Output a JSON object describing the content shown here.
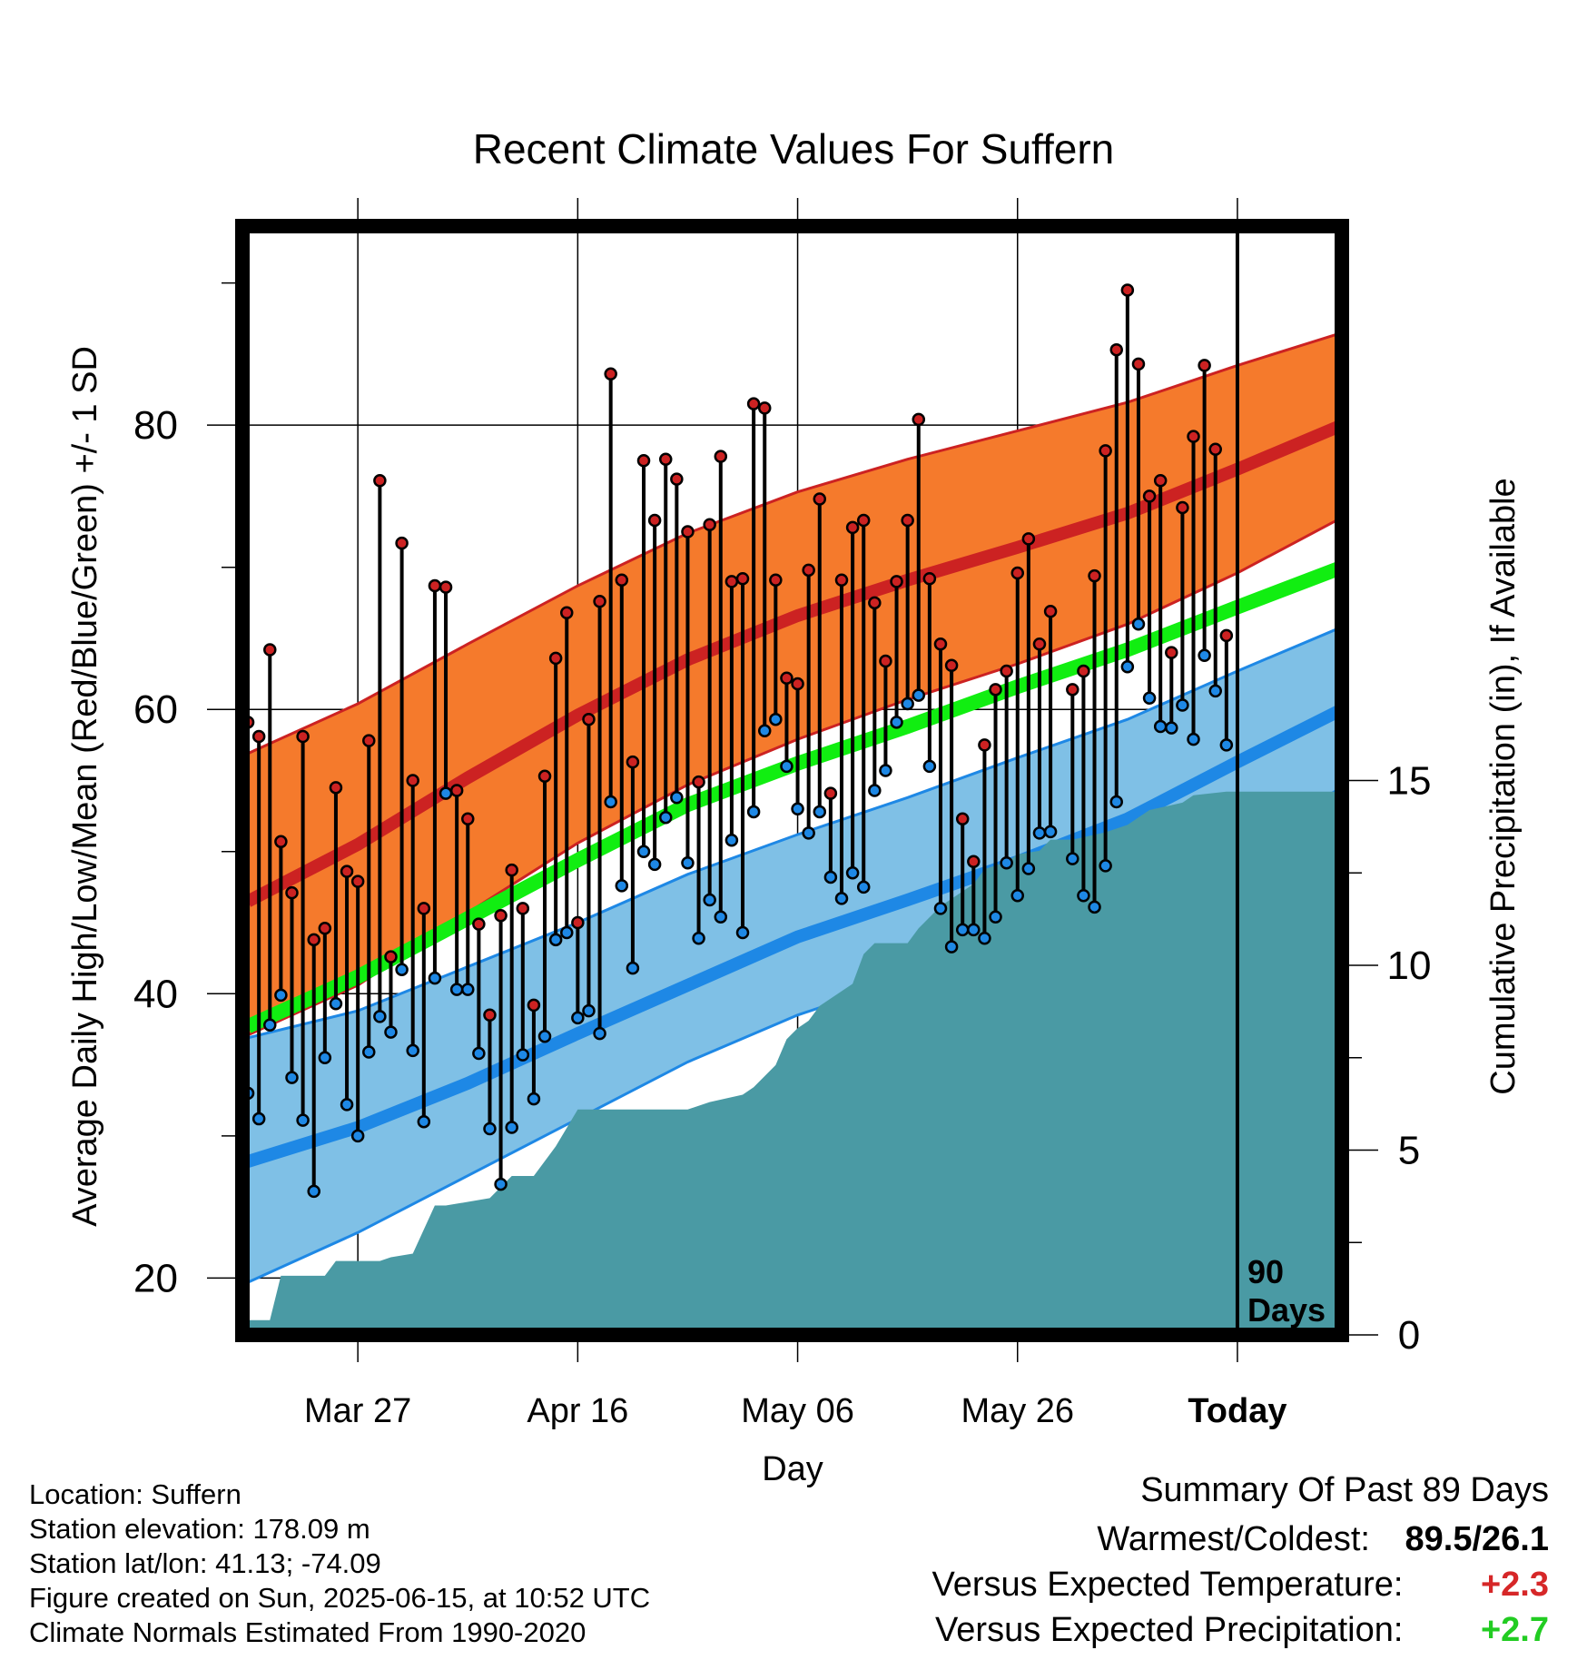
{
  "chart_data": {
    "type": "line",
    "title": "Recent Climate Values For Suffern",
    "xlabel": "Day",
    "ylabel": "Average Daily High/Low/Mean (Red/Blue/Green) +/- 1 SD",
    "y2label": "Cumulative Precipitation (in), If Available",
    "x_tick_labels": [
      "Mar 27",
      "Apr 16",
      "May 06",
      "May 26",
      "Today"
    ],
    "x_tick_days": [
      10,
      30,
      50,
      70,
      90
    ],
    "x_range": [
      -0.5,
      99.5
    ],
    "today_day": 90,
    "today_annotation": [
      "90",
      "Days"
    ],
    "ylim": [
      16,
      94
    ],
    "y_ticks": [
      20,
      40,
      60,
      80
    ],
    "y2lim": [
      0,
      30
    ],
    "y2_ticks": [
      0,
      5,
      10,
      15
    ],
    "grid": true,
    "normals": {
      "day": [
        0,
        10,
        20,
        30,
        40,
        50,
        60,
        70,
        80,
        90,
        99.5
      ],
      "high_mean": [
        46.5,
        50.5,
        55.2,
        59.6,
        63.5,
        66.6,
        69.1,
        71.4,
        73.8,
        76.9,
        80.0
      ],
      "high_sd_upper": [
        56.9,
        60.4,
        64.6,
        68.7,
        72.4,
        75.3,
        77.6,
        79.6,
        81.6,
        84.2,
        86.5
      ],
      "high_sd_lower": [
        37.1,
        40.6,
        45.7,
        50.6,
        54.7,
        57.9,
        60.7,
        63.2,
        66.0,
        69.6,
        73.5
      ],
      "mean": [
        37.7,
        41.2,
        45.3,
        49.4,
        53.3,
        56.2,
        58.8,
        61.6,
        64.2,
        67.2,
        70.0
      ],
      "low_mean": [
        28.2,
        30.6,
        33.7,
        37.2,
        40.6,
        44.0,
        46.6,
        49.3,
        52.3,
        56.3,
        60.0
      ],
      "low_sd_upper": [
        36.9,
        38.8,
        41.9,
        45.0,
        48.4,
        51.2,
        53.8,
        56.6,
        59.3,
        62.7,
        65.8
      ],
      "low_sd_lower": [
        19.7,
        23.2,
        27.2,
        31.2,
        35.2,
        38.5,
        41.1,
        43.6,
        46.6,
        50.4,
        54.5
      ]
    },
    "series": [
      {
        "name": "High",
        "values": [
          59.1,
          58.1,
          64.2,
          50.7,
          47.1,
          58.1,
          43.8,
          44.6,
          54.5,
          48.6,
          47.9,
          57.8,
          76.1,
          42.6,
          71.7,
          55.0,
          46.0,
          68.7,
          68.6,
          54.3,
          52.3,
          44.9,
          38.5,
          45.5,
          48.7,
          46.0,
          39.2,
          55.3,
          63.6,
          66.8,
          45.0,
          59.3,
          67.6,
          83.6,
          69.1,
          56.3,
          77.5,
          73.3,
          77.6,
          76.2,
          72.5,
          54.9,
          73.0,
          77.8,
          69.0,
          69.2,
          81.5,
          81.2,
          69.1,
          62.2,
          61.8,
          69.8,
          74.8,
          54.1,
          69.1,
          72.8,
          73.3,
          67.5,
          63.4,
          69.0,
          73.3,
          80.4,
          69.2,
          64.6,
          63.1,
          52.3,
          49.3,
          57.5,
          61.4,
          62.7,
          69.6,
          72.0,
          64.6,
          66.9,
          null,
          61.4,
          62.7,
          69.4,
          78.2,
          85.3,
          89.5,
          84.3,
          75.0,
          76.1,
          64.0,
          74.2,
          79.2,
          84.2,
          78.3,
          65.2
        ]
      },
      {
        "name": "Low",
        "values": [
          33.0,
          31.2,
          37.8,
          39.9,
          34.1,
          31.1,
          26.1,
          35.5,
          39.3,
          32.2,
          30.0,
          35.9,
          38.4,
          37.3,
          41.7,
          36.0,
          31.0,
          41.1,
          54.1,
          40.3,
          40.3,
          35.8,
          30.5,
          26.6,
          30.6,
          35.7,
          32.6,
          37.0,
          43.8,
          44.3,
          38.3,
          38.8,
          37.2,
          53.5,
          47.6,
          41.8,
          50.0,
          49.1,
          52.4,
          53.8,
          49.2,
          43.9,
          46.6,
          45.4,
          50.8,
          44.3,
          52.8,
          58.5,
          59.3,
          56.0,
          53.0,
          51.3,
          52.8,
          48.2,
          46.7,
          48.5,
          47.5,
          54.3,
          55.7,
          59.1,
          60.4,
          61.0,
          56.0,
          46.0,
          43.3,
          44.5,
          44.5,
          43.9,
          45.4,
          49.2,
          46.9,
          48.8,
          51.3,
          51.4,
          null,
          49.5,
          46.9,
          46.1,
          49.0,
          53.5,
          63.0,
          66.0,
          60.8,
          58.8,
          58.7,
          60.3,
          57.9,
          63.8,
          61.3,
          57.5
        ]
      },
      {
        "name": "Cumulative Precipitation",
        "day": [
          0,
          2,
          3,
          5,
          7,
          8,
          10,
          12,
          13,
          15,
          17,
          18,
          20,
          22,
          24,
          25,
          26,
          28,
          30,
          35,
          40,
          42,
          45,
          46,
          48,
          49,
          50,
          51,
          52,
          55,
          56,
          57,
          60,
          61,
          63,
          64,
          66,
          67,
          69,
          70,
          72,
          73,
          75,
          78,
          80,
          82,
          85,
          86,
          89,
          90,
          99.5
        ],
        "values": [
          0.4,
          0.4,
          1.6,
          1.6,
          1.6,
          2.0,
          2.0,
          2.0,
          2.1,
          2.2,
          3.5,
          3.5,
          3.6,
          3.7,
          4.3,
          4.3,
          4.3,
          5.1,
          6.1,
          6.1,
          6.1,
          6.3,
          6.5,
          6.7,
          7.3,
          8.0,
          8.3,
          8.5,
          8.9,
          9.5,
          10.3,
          10.6,
          10.6,
          11.0,
          11.6,
          11.8,
          12.2,
          12.6,
          12.8,
          13.0,
          13.1,
          13.4,
          13.4,
          13.6,
          13.8,
          14.2,
          14.4,
          14.6,
          14.7,
          14.7,
          14.7
        ]
      }
    ]
  },
  "location_text": "Location: Suffern",
  "elevation_text": "Station elevation: 178.09 m",
  "latlon_text": "Station lat/lon: 41.13; -74.09",
  "created_text": "Figure created on Sun, 2025-06-15, at 10:52 UTC",
  "normals_text": "Climate Normals Estimated From 1990-2020",
  "summary": {
    "heading": "Summary Of Past 89 Days",
    "warm_cold_label": "Warmest/Coldest:",
    "warm_cold_value": "89.5/26.1",
    "temp_label": "Versus Expected Temperature:",
    "temp_value": "+2.3",
    "temp_color": "#d62728",
    "precip_label": "Versus Expected Precipitation:",
    "precip_value": "+2.7",
    "precip_color": "#22cc22"
  },
  "colors": {
    "high_band": "#f57a2c",
    "high_line": "#cc2222",
    "mean_line": "#11ee11",
    "low_band": "#7fc0e6",
    "low_line": "#1e88e5",
    "precip_fill": "#4a9aa4",
    "high_dot": "#cc2222",
    "low_dot": "#1e88e5"
  }
}
